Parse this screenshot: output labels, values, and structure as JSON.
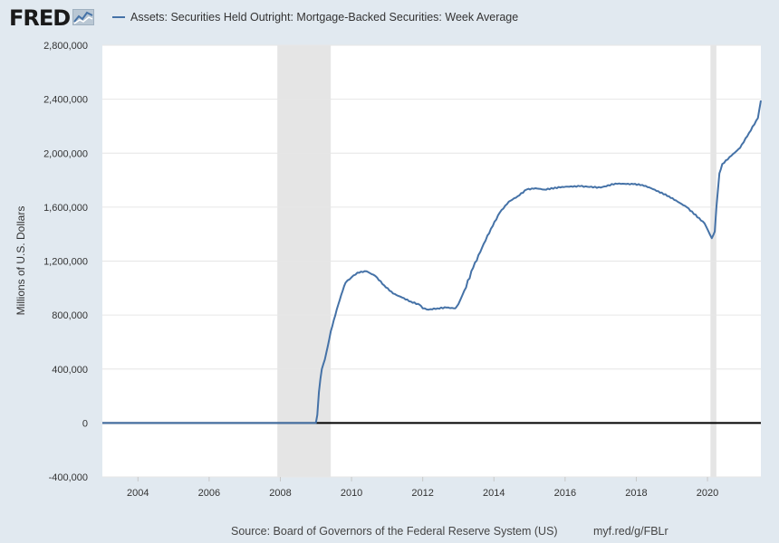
{
  "branding": {
    "logo_text": "FRED",
    "logo_icon": "line-chart-icon"
  },
  "footer": {
    "source": "Source: Board of Governors of the Federal Reserve System (US)",
    "link": "myf.red/g/FBLr"
  },
  "colors": {
    "series": "#4572a7",
    "background": "#e1e9f0",
    "plot": "#ffffff",
    "recession": "#e5e5e5",
    "zero_line": "#000000"
  },
  "chart_data": {
    "type": "line",
    "title": "",
    "xlabel": "",
    "ylabel": "Millions of U.S. Dollars",
    "xlim": [
      "2003-01-01",
      "2021-07-01"
    ],
    "ylim": [
      -400000,
      2800000
    ],
    "x_ticks": [
      "2004",
      "2006",
      "2008",
      "2010",
      "2012",
      "2014",
      "2016",
      "2018",
      "2020"
    ],
    "y_ticks": [
      "-400,000",
      "0",
      "400,000",
      "800,000",
      "1,200,000",
      "1,600,000",
      "2,000,000",
      "2,400,000",
      "2,800,000"
    ],
    "y_tick_values": [
      -400000,
      0,
      400000,
      800000,
      1200000,
      1600000,
      2000000,
      2400000,
      2800000
    ],
    "grid": true,
    "legend_position": "top",
    "recessions": [
      {
        "start": "2007-12-01",
        "end": "2009-06-01"
      },
      {
        "start": "2020-02-01",
        "end": "2020-04-01"
      }
    ],
    "series": [
      {
        "name": "Assets: Securities Held Outright: Mortgage-Backed Securities: Week Average",
        "color": "#4572a7",
        "points": [
          [
            "2003-01-01",
            0
          ],
          [
            "2008-12-31",
            0
          ],
          [
            "2009-01-15",
            60000
          ],
          [
            "2009-02-01",
            230000
          ],
          [
            "2009-03-01",
            400000
          ],
          [
            "2009-04-01",
            470000
          ],
          [
            "2009-05-01",
            570000
          ],
          [
            "2009-06-01",
            680000
          ],
          [
            "2009-07-01",
            760000
          ],
          [
            "2009-08-01",
            840000
          ],
          [
            "2009-09-01",
            910000
          ],
          [
            "2009-10-01",
            980000
          ],
          [
            "2009-11-01",
            1040000
          ],
          [
            "2010-01-01",
            1080000
          ],
          [
            "2010-03-01",
            1115000
          ],
          [
            "2010-06-01",
            1125000
          ],
          [
            "2010-09-01",
            1090000
          ],
          [
            "2010-12-01",
            1020000
          ],
          [
            "2011-03-01",
            960000
          ],
          [
            "2011-06-01",
            930000
          ],
          [
            "2011-09-01",
            900000
          ],
          [
            "2011-12-01",
            875000
          ],
          [
            "2012-01-01",
            850000
          ],
          [
            "2012-03-01",
            840000
          ],
          [
            "2012-06-01",
            850000
          ],
          [
            "2012-09-01",
            855000
          ],
          [
            "2012-12-01",
            850000
          ],
          [
            "2013-01-01",
            880000
          ],
          [
            "2013-03-01",
            980000
          ],
          [
            "2013-06-01",
            1150000
          ],
          [
            "2013-09-01",
            1300000
          ],
          [
            "2013-12-01",
            1440000
          ],
          [
            "2014-03-01",
            1560000
          ],
          [
            "2014-06-01",
            1640000
          ],
          [
            "2014-09-01",
            1680000
          ],
          [
            "2014-12-01",
            1730000
          ],
          [
            "2015-03-01",
            1740000
          ],
          [
            "2015-06-01",
            1730000
          ],
          [
            "2015-12-01",
            1750000
          ],
          [
            "2016-06-01",
            1755000
          ],
          [
            "2017-01-01",
            1745000
          ],
          [
            "2017-06-01",
            1775000
          ],
          [
            "2017-12-01",
            1770000
          ],
          [
            "2018-03-01",
            1765000
          ],
          [
            "2018-06-01",
            1740000
          ],
          [
            "2018-12-01",
            1680000
          ],
          [
            "2019-06-01",
            1600000
          ],
          [
            "2019-12-01",
            1480000
          ],
          [
            "2020-02-15",
            1370000
          ],
          [
            "2020-03-15",
            1420000
          ],
          [
            "2020-04-01",
            1600000
          ],
          [
            "2020-05-01",
            1850000
          ],
          [
            "2020-06-01",
            1920000
          ],
          [
            "2020-09-01",
            1980000
          ],
          [
            "2020-12-01",
            2040000
          ],
          [
            "2021-03-01",
            2150000
          ],
          [
            "2021-06-01",
            2260000
          ],
          [
            "2021-07-01",
            2390000
          ]
        ]
      }
    ]
  }
}
